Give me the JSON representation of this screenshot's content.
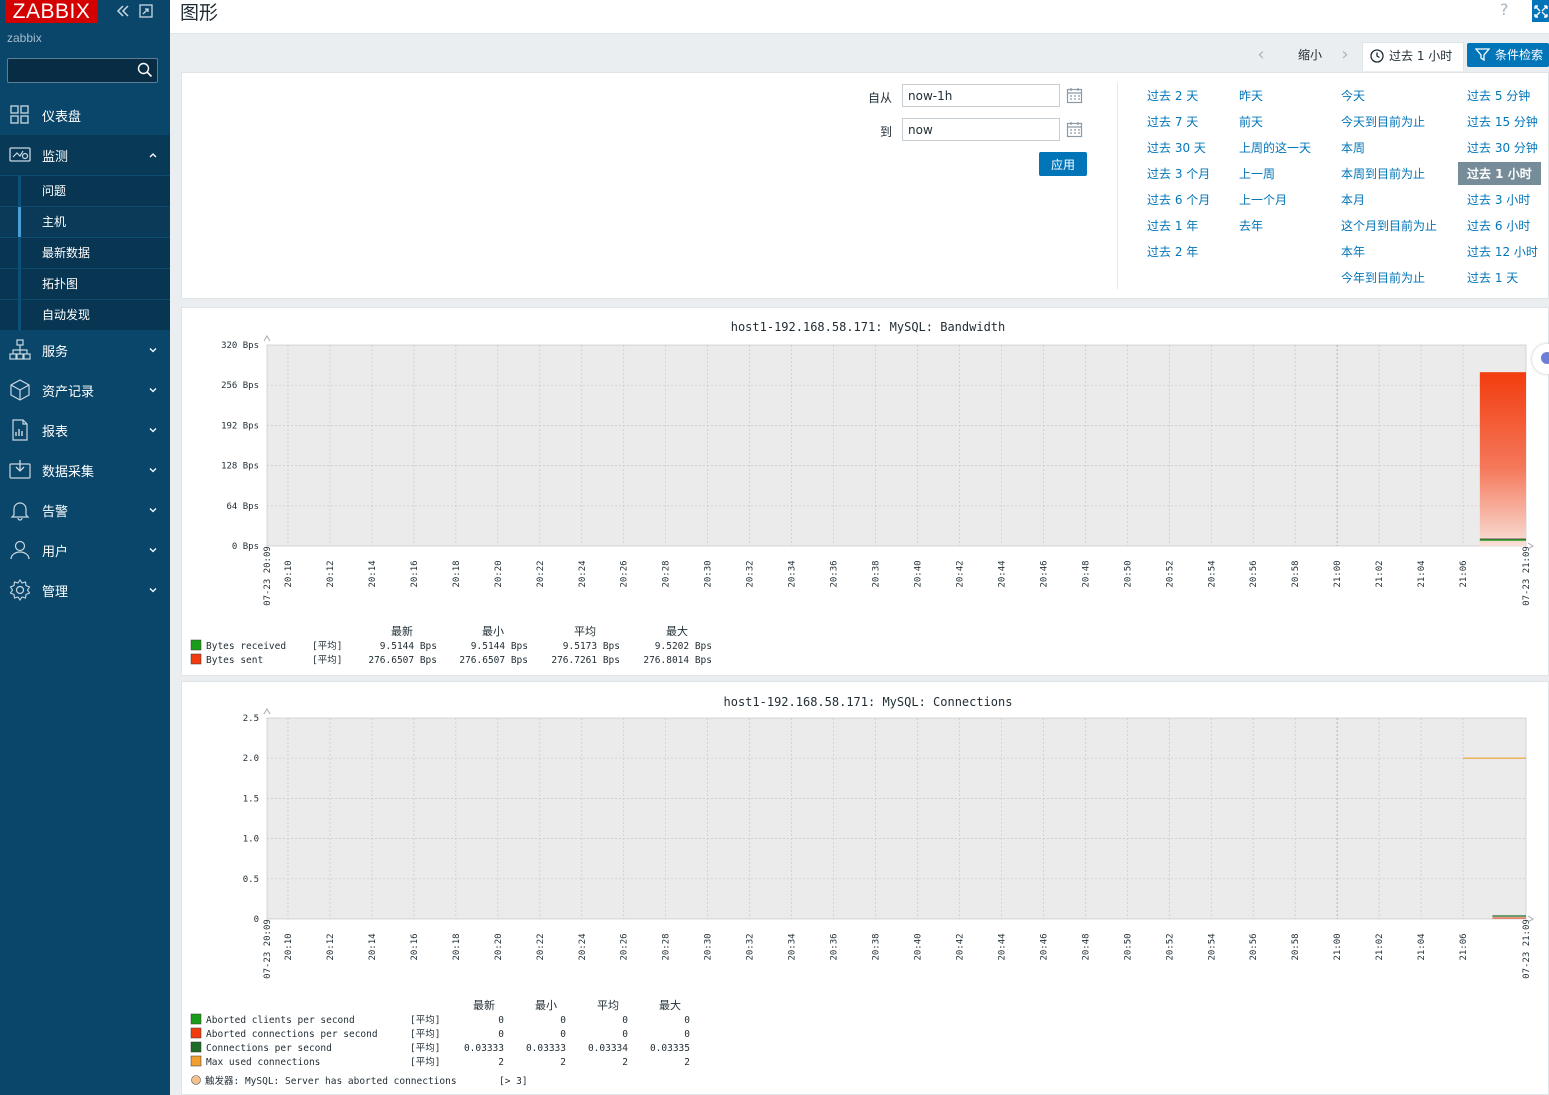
{
  "sidebar": {
    "logo": "ZABBIX",
    "server_name": "zabbix",
    "search_placeholder": "",
    "menu": [
      {
        "label": "仪表盘",
        "icon": "dashboard-icon"
      },
      {
        "label": "监测",
        "icon": "monitoring-icon",
        "expanded": true,
        "sub": [
          {
            "label": "问题"
          },
          {
            "label": "主机",
            "active": true
          },
          {
            "label": "最新数据"
          },
          {
            "label": "拓扑图"
          },
          {
            "label": "自动发现"
          }
        ]
      },
      {
        "label": "服务",
        "icon": "services-icon"
      },
      {
        "label": "资产记录",
        "icon": "inventory-icon"
      },
      {
        "label": "报表",
        "icon": "reports-icon"
      },
      {
        "label": "数据采集",
        "icon": "data-collection-icon"
      },
      {
        "label": "告警",
        "icon": "alerts-icon"
      },
      {
        "label": "用户",
        "icon": "users-icon"
      },
      {
        "label": "管理",
        "icon": "administration-icon"
      }
    ]
  },
  "header": {
    "title": "图形",
    "help": "?"
  },
  "filter_tabs": {
    "zoom_out": "缩小",
    "time_range": "过去 1 小时",
    "filter": "条件检索"
  },
  "filter_panel": {
    "from_label": "自从",
    "from_value": "now-1h",
    "to_label": "到",
    "to_value": "now",
    "apply": "应用",
    "quick_columns": [
      [
        "过去 2 天",
        "过去 7 天",
        "过去 30 天",
        "过去 3 个月",
        "过去 6 个月",
        "过去 1 年",
        "过去 2 年"
      ],
      [
        "昨天",
        "前天",
        "上周的这一天",
        "上一周",
        "上一个月",
        "去年"
      ],
      [
        "今天",
        "今天到目前为止",
        "本周",
        "本周到目前为止",
        "本月",
        "这个月到目前为止",
        "本年",
        "今年到目前为止"
      ],
      [
        "过去 5 分钟",
        "过去 15 分钟",
        "过去 30 分钟",
        "过去 1 小时",
        "过去 3 小时",
        "过去 6 小时",
        "过去 12 小时",
        "过去 1 天"
      ]
    ],
    "selected": "过去 1 小时"
  },
  "x_axis": {
    "start_label": "07-23 20:09",
    "end_label": "07-23 21:09",
    "ticks": [
      "20:10",
      "20:12",
      "20:14",
      "20:16",
      "20:18",
      "20:20",
      "20:22",
      "20:24",
      "20:26",
      "20:28",
      "20:30",
      "20:32",
      "20:34",
      "20:36",
      "20:38",
      "20:40",
      "20:42",
      "20:44",
      "20:46",
      "20:48",
      "20:50",
      "20:52",
      "20:54",
      "20:56",
      "20:58",
      "21:00",
      "21:02",
      "21:04",
      "21:06"
    ],
    "highlight": "21:00"
  },
  "graphs": [
    {
      "title": "host1-192.168.58.171: MySQL: Bandwidth",
      "y_ticks": [
        "320 Bps",
        "256 Bps",
        "192 Bps",
        "128 Bps",
        "64 Bps",
        "0 Bps"
      ],
      "y_range": [
        0,
        320
      ],
      "legend_headers": [
        "最新",
        "最小",
        "平均",
        "最大"
      ],
      "series": [
        {
          "name": "Bytes received",
          "func": "[平均]",
          "color": "#1a9e1a",
          "last": "9.5144 Bps",
          "min": "9.5144 Bps",
          "avg": "9.5173 Bps",
          "max": "9.5202 Bps"
        },
        {
          "name": "Bytes sent",
          "func": "[平均]",
          "color": "#f23c0e",
          "last": "276.6507 Bps",
          "min": "276.6507 Bps",
          "avg": "276.7261 Bps",
          "max": "276.8014 Bps"
        }
      ]
    },
    {
      "title": "host1-192.168.58.171: MySQL: Connections",
      "y_ticks": [
        "2.5",
        "2.0",
        "1.5",
        "1.0",
        "0.5",
        "0"
      ],
      "y_range": [
        0,
        2.5
      ],
      "legend_headers": [
        "最新",
        "最小",
        "平均",
        "最大"
      ],
      "series": [
        {
          "name": "Aborted clients per second",
          "func": "[平均]",
          "color": "#1a9e1a",
          "last": "0",
          "min": "0",
          "avg": "0",
          "max": "0"
        },
        {
          "name": "Aborted connections per second",
          "func": "[平均]",
          "color": "#f23c0e",
          "last": "0",
          "min": "0",
          "avg": "0",
          "max": "0"
        },
        {
          "name": "Connections per second",
          "func": "[平均]",
          "color": "#1e6b2a",
          "last": "0.03333",
          "min": "0.03333",
          "avg": "0.03334",
          "max": "0.03335"
        },
        {
          "name": "Max used connections",
          "func": "[平均]",
          "color": "#f0a030",
          "last": "2",
          "min": "2",
          "avg": "2",
          "max": "2"
        }
      ],
      "trigger": {
        "label": "触发器: MySQL: Server has aborted connections",
        "cond": "[> 3]",
        "color": "#f5c08f"
      }
    }
  ]
}
